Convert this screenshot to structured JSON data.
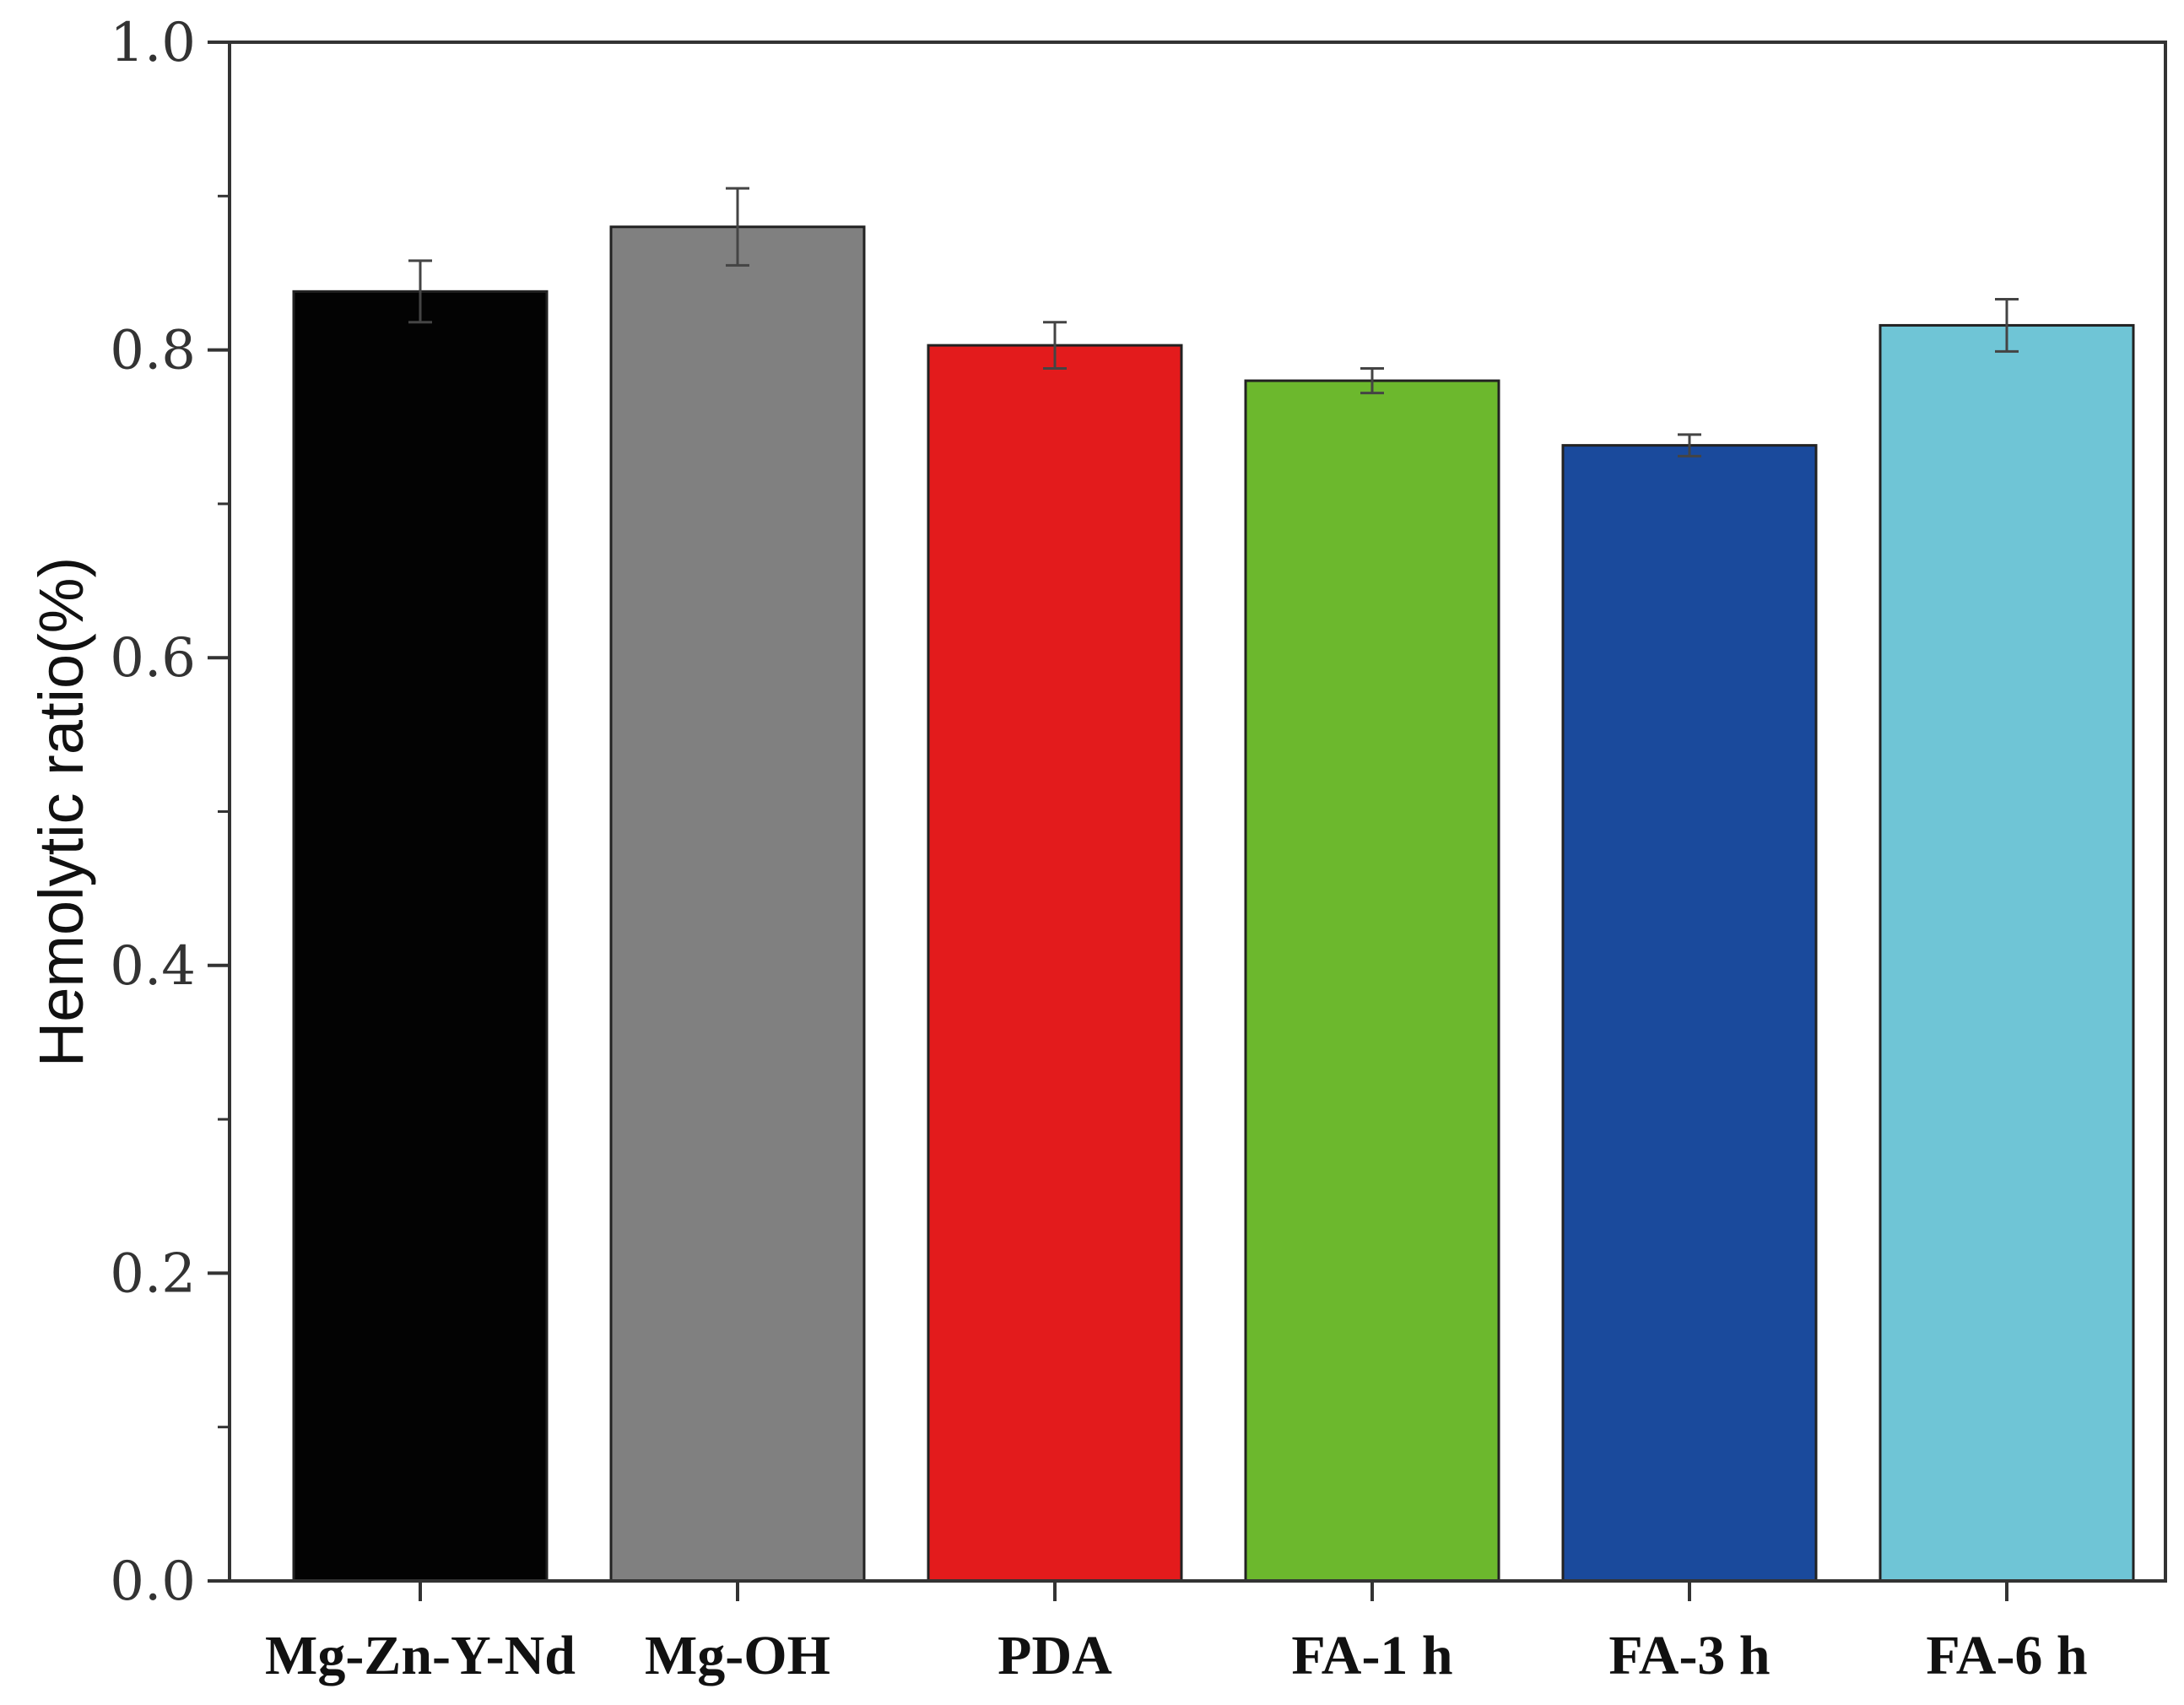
{
  "chart_data": {
    "type": "bar",
    "title": "",
    "xlabel": "",
    "ylabel": "Hemolytic ratio(%)",
    "ylim": [
      0,
      1.0
    ],
    "yticks": [
      "0.0",
      "0.2",
      "0.4",
      "0.6",
      "0.8",
      "1.0"
    ],
    "grid": false,
    "categories": [
      "Mg-Zn-Y-Nd",
      "Mg-OH",
      "PDA",
      "FA-1 h",
      "FA-3 h",
      "FA-6 h"
    ],
    "values": [
      0.838,
      0.88,
      0.803,
      0.78,
      0.738,
      0.816
    ],
    "errors": [
      0.02,
      0.025,
      0.015,
      0.008,
      0.007,
      0.017
    ],
    "colors": [
      "#030303",
      "#808080",
      "#e31b1c",
      "#6cb82d",
      "#1a4a9c",
      "#6fc5d6"
    ]
  }
}
